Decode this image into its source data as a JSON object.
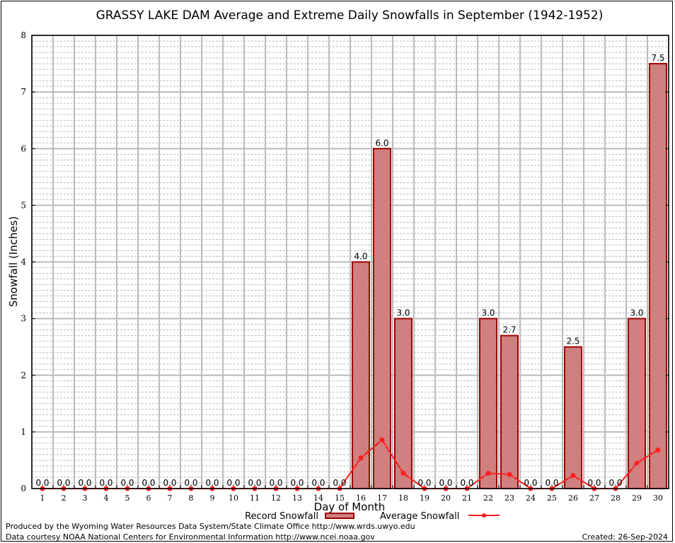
{
  "chart_data": {
    "type": "bar",
    "title": "GRASSY LAKE DAM Average and Extreme Daily Snowfalls in September (1942-1952)",
    "xlabel": "Day of Month",
    "ylabel": "Snowfall (Inches)",
    "ylim": [
      0,
      8
    ],
    "yticks": [
      "0",
      "1",
      "2",
      "3",
      "4",
      "5",
      "6",
      "7",
      "8"
    ],
    "grid": true,
    "legend_placement": "bottom-center",
    "categories": [
      "1",
      "2",
      "3",
      "4",
      "5",
      "6",
      "7",
      "8",
      "9",
      "10",
      "11",
      "12",
      "13",
      "14",
      "15",
      "16",
      "17",
      "18",
      "19",
      "20",
      "21",
      "22",
      "23",
      "24",
      "25",
      "26",
      "27",
      "28",
      "29",
      "30"
    ],
    "series": [
      {
        "name": "Record Snowfall",
        "type": "bar",
        "color": "#a00000",
        "values": [
          0,
          0,
          0,
          0,
          0,
          0,
          0,
          0,
          0,
          0,
          0,
          0,
          0,
          0,
          0,
          4.0,
          6.0,
          3.0,
          0,
          0,
          0,
          3.0,
          2.7,
          0,
          0,
          2.5,
          0,
          0,
          3.0,
          7.5
        ],
        "labels": [
          "0.0",
          "0.0",
          "0.0",
          "0.0",
          "0.0",
          "0.0",
          "0.0",
          "0.0",
          "0.0",
          "0.0",
          "0.0",
          "0.0",
          "0.0",
          "0.0",
          "0.0",
          "4.0",
          "6.0",
          "3.0",
          "0.0",
          "0.0",
          "0.0",
          "3.0",
          "2.7",
          "0.0",
          "0.0",
          "2.5",
          "0.0",
          "0.0",
          "3.0",
          "7.5"
        ]
      },
      {
        "name": "Average Snowfall",
        "type": "line",
        "color": "#ff2020",
        "values": [
          0,
          0,
          0,
          0,
          0,
          0,
          0,
          0,
          0,
          0,
          0,
          0,
          0,
          0,
          0,
          0.54,
          0.86,
          0.27,
          0,
          0,
          0,
          0.27,
          0.25,
          0,
          0,
          0.23,
          0,
          0,
          0.45,
          0.68
        ]
      }
    ]
  },
  "footer": {
    "produced_by": "Produced by the Wyoming Water Resources Data System/State Climate Office http://www.wrds.uwyo.edu",
    "data_courtesy": "Data courtesy NOAA National Centers for Environmental Information http://www.ncei.noaa.gov",
    "created": "Created:  26-Sep-2024"
  }
}
